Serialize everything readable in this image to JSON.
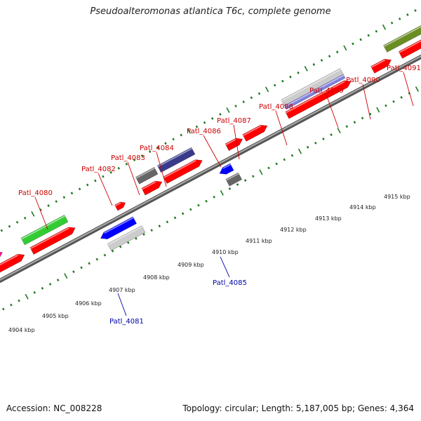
{
  "header": {
    "title": "Pseudoalteromonas atlantica T6c, complete genome"
  },
  "footer": {
    "accession": "Accession: NC_008228",
    "topology": "Topology: circular; Length: 5,187,005 bp; Genes: 4,364"
  },
  "colors": {
    "forward_label": "#cc0000",
    "reverse_label": "#0000aa",
    "ruler_tick": "#1e7a1e",
    "backbone": "#808080",
    "cds": "#ff0000"
  },
  "ruler_labels": [
    "4904 kbp",
    "4905 kbp",
    "4906 kbp",
    "4907 kbp",
    "4908 kbp",
    "4909 kbp",
    "4910 kbp",
    "4911 kbp",
    "4912 kbp",
    "4913 kbp",
    "4914 kbp",
    "4915 kbp"
  ],
  "genes": [
    {
      "name": "Patl_4080",
      "strand": "forward"
    },
    {
      "name": "Patl_4081",
      "strand": "reverse"
    },
    {
      "name": "Patl_4082",
      "strand": "forward"
    },
    {
      "name": "Patl_4083",
      "strand": "forward"
    },
    {
      "name": "Patl_4084",
      "strand": "forward"
    },
    {
      "name": "Patl_4085",
      "strand": "reverse"
    },
    {
      "name": "Patl_4086",
      "strand": "forward"
    },
    {
      "name": "Patl_4087",
      "strand": "forward"
    },
    {
      "name": "Patl_4088",
      "strand": "forward"
    },
    {
      "name": "Patl_4089",
      "strand": "forward"
    },
    {
      "name": "Patl_4090",
      "strand": "forward"
    },
    {
      "name": "Patl_4091",
      "strand": "forward"
    }
  ],
  "feature_colors": {
    "cds": "#ff0000",
    "magenta": "#ff1493",
    "green": "#33cc33",
    "blue": "#0000ff",
    "light_gray": "#cccccc",
    "dark_gray": "#666666",
    "navy": "#3a3a8c",
    "lavender": "#8080e0",
    "olive": "#6b8e23"
  }
}
